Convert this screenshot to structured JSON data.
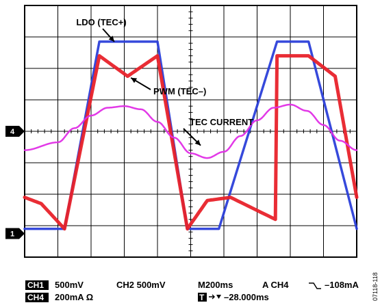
{
  "chart_data": {
    "type": "line",
    "title": "",
    "xlabel": "",
    "ylabel": "",
    "grid": true,
    "divisions": {
      "x": 10,
      "y": 8
    },
    "xlim": [
      0,
      10
    ],
    "ylim": [
      0,
      8
    ],
    "series": [
      {
        "name": "LDO (TEC+)",
        "color": "#2b3fd9",
        "x": [
          0.0,
          1.2,
          2.25,
          4.0,
          4.9,
          5.85,
          7.6,
          8.55,
          10.0
        ],
        "y": [
          0.9,
          0.9,
          6.85,
          6.85,
          0.9,
          0.9,
          6.85,
          6.85,
          0.9
        ]
      },
      {
        "name": "PWM (TEC–)",
        "color": "#e8222a",
        "x": [
          0.0,
          0.5,
          1.2,
          2.25,
          3.1,
          4.0,
          4.9,
          5.5,
          6.2,
          7.55,
          7.6,
          8.55,
          9.35,
          10.0
        ],
        "y": [
          1.9,
          1.7,
          0.9,
          6.4,
          5.75,
          6.4,
          0.9,
          1.8,
          1.9,
          1.2,
          6.4,
          6.4,
          5.75,
          1.9
        ]
      },
      {
        "name": "TEC CURRENT",
        "color": "#e02ee6",
        "x": [
          0.0,
          1.0,
          1.5,
          2.0,
          2.5,
          3.0,
          3.5,
          4.0,
          4.5,
          5.0,
          5.5,
          6.0,
          6.5,
          7.0,
          7.5,
          8.0,
          8.5,
          9.0,
          9.5,
          10.0
        ],
        "y": [
          3.4,
          3.65,
          4.1,
          4.5,
          4.75,
          4.8,
          4.7,
          4.3,
          3.8,
          3.3,
          3.15,
          3.35,
          3.85,
          4.35,
          4.75,
          4.85,
          4.65,
          4.2,
          3.7,
          3.4
        ]
      }
    ],
    "annotations": [
      {
        "text": "LDO (TEC+)",
        "series": "LDO (TEC+)",
        "point": [
          2.7,
          6.85
        ]
      },
      {
        "text": "PWM (TEC–)",
        "series": "PWM (TEC–)",
        "point": [
          3.2,
          5.7
        ]
      },
      {
        "text": "TEC CURRENT",
        "series": "TEC CURRENT",
        "point": [
          5.3,
          3.55
        ]
      }
    ],
    "channel_markers": [
      {
        "label": "4",
        "level": 4.0
      },
      {
        "label": "1",
        "level": 0.75
      }
    ]
  },
  "status": {
    "ch1_badge": "CH1",
    "ch1_scale": "500mV",
    "ch2": "CH2 500mV",
    "timebase": "M200ms",
    "trigger": "A  CH4",
    "trigger_level": "–108mA",
    "ch4_badge": "CH4",
    "ch4_scale": "200mA Ω",
    "t_badge": "T",
    "trigger_position": "–28.000ms"
  },
  "figure_id": "07118-118"
}
